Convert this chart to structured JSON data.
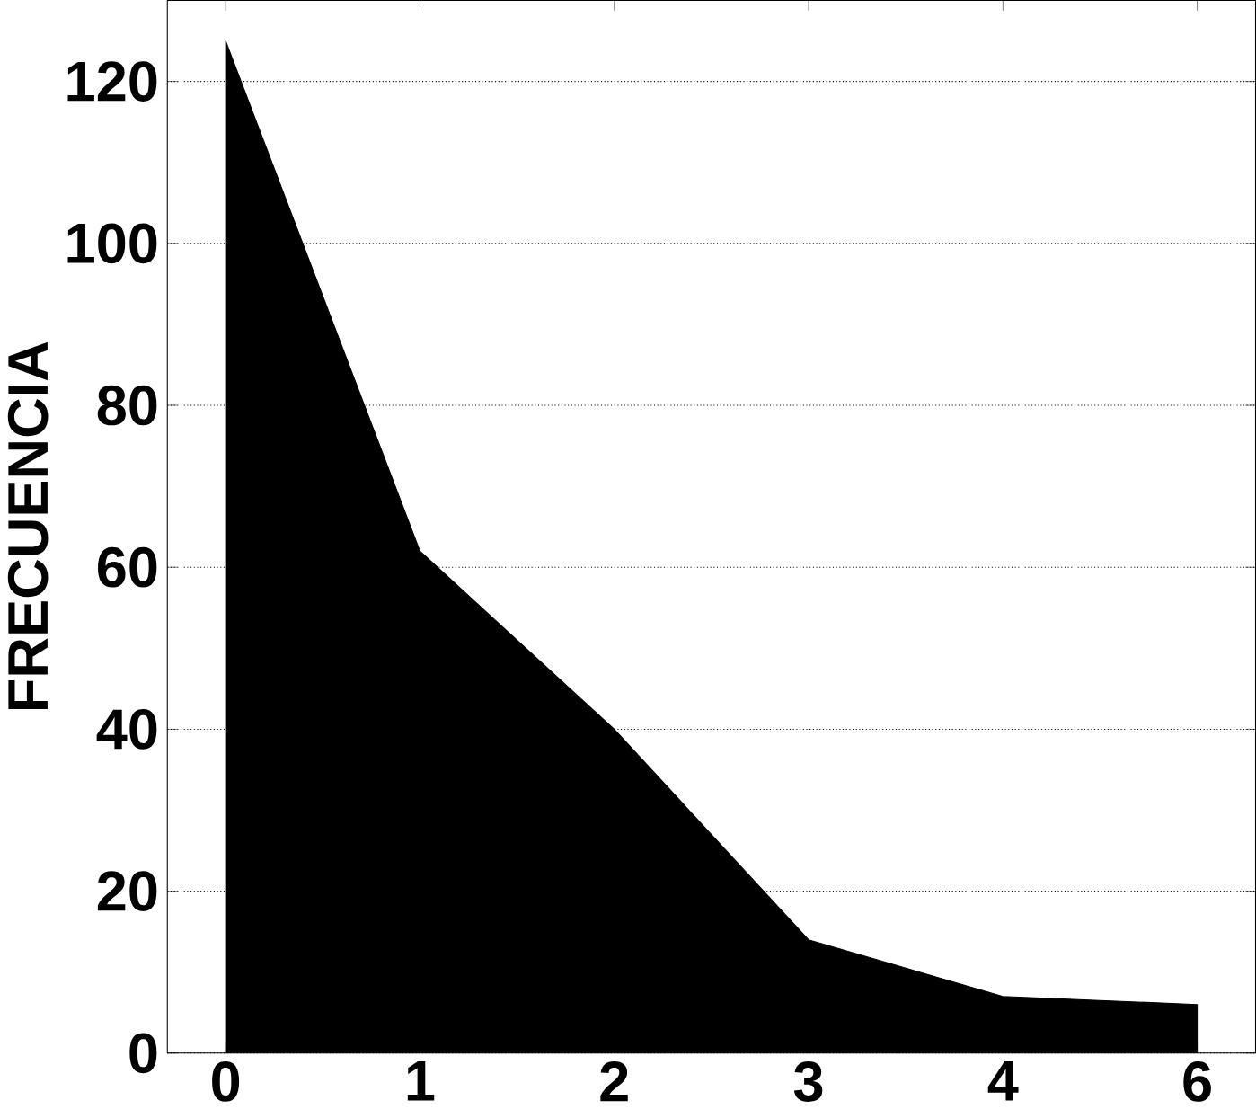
{
  "chart_data": {
    "type": "area",
    "ylabel": "FRECUENCIA",
    "categories": [
      "0",
      "1",
      "2",
      "3",
      "4",
      "6"
    ],
    "values": [
      125,
      62,
      40,
      14,
      7,
      6
    ],
    "color": "#000000",
    "ylim": [
      0,
      130
    ],
    "yticks": [
      0,
      20,
      40,
      60,
      80,
      100,
      120
    ],
    "grid": "y",
    "line_style": "dotted"
  }
}
